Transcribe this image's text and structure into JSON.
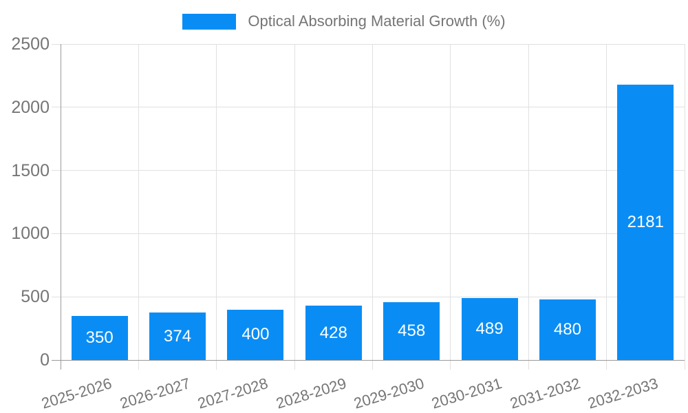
{
  "chart_data": {
    "type": "bar",
    "title": "Optical Absorbing Material Growth (%)",
    "categories": [
      "2025-2026",
      "2026-2027",
      "2027-2028",
      "2028-2029",
      "2029-2030",
      "2030-2031",
      "2031-2032",
      "2032-2033"
    ],
    "values": [
      350,
      374,
      400,
      428,
      458,
      489,
      480,
      2181
    ],
    "xlabel": "",
    "ylabel": "",
    "ylim": [
      0,
      2500
    ],
    "y_ticks": [
      0,
      500,
      1000,
      1500,
      2000,
      2500
    ],
    "grid": true,
    "legend_position": "top-center",
    "value_labels": "inside-center",
    "colors": {
      "bar": "#098df5",
      "value_label": "#ffffff",
      "axis": "#999999",
      "gridline": "#e0e0e0",
      "text": "#757575",
      "background": "#ffffff"
    }
  }
}
